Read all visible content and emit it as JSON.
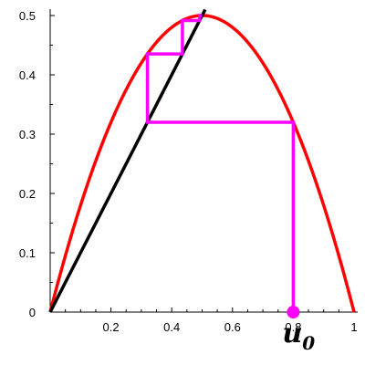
{
  "chart_data": {
    "type": "line",
    "title": "",
    "xlabel": "",
    "ylabel": "",
    "xlim": [
      0,
      1
    ],
    "ylim": [
      0,
      0.5
    ],
    "grid": false,
    "x_ticks": [
      "0.2",
      "0.4",
      "0.6",
      "0.8",
      "1"
    ],
    "y_ticks": [
      "0",
      "0.1",
      "0.2",
      "0.3",
      "0.4",
      "0.5"
    ],
    "series": [
      {
        "kind": "function",
        "expression": "2*x*(1-x)",
        "domain": [
          0,
          1
        ],
        "color": "#ff0000"
      },
      {
        "kind": "function",
        "expression": "x",
        "domain": [
          0,
          0.51
        ],
        "color": "#000000"
      },
      {
        "kind": "cobweb",
        "color": "#ff00ff",
        "points": [
          [
            0.8,
            0
          ],
          [
            0.8,
            0.32
          ],
          [
            0.32,
            0.32
          ],
          [
            0.32,
            0.4352
          ],
          [
            0.4352,
            0.4352
          ],
          [
            0.4352,
            0.4916
          ],
          [
            0.4916,
            0.4916
          ],
          [
            0.4916,
            0.4999
          ],
          [
            0.4999,
            0.4999
          ]
        ]
      }
    ],
    "annotations": [
      {
        "text": "u",
        "subscript": "0",
        "x": 0.8,
        "y": 0,
        "marker": "dot",
        "color": "#ff00ff"
      }
    ]
  }
}
